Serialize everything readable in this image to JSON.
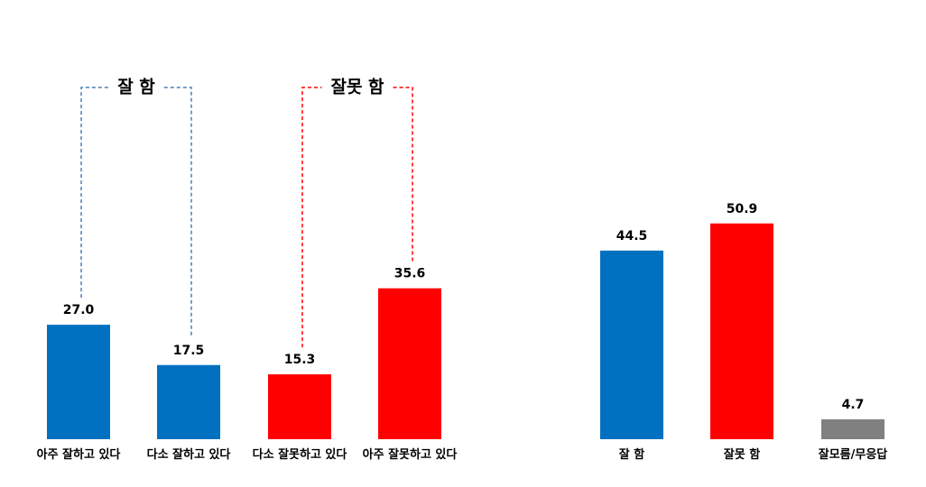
{
  "chart_data": [
    {
      "type": "bar",
      "categories": [
        "아주 잘하고 있다",
        "다소 잘하고 있다",
        "다소 잘못하고 있다",
        "아주 잘못하고 있다"
      ],
      "values": [
        27.0,
        17.5,
        15.3,
        35.6
      ],
      "value_labels": [
        "27.0",
        "17.5",
        "15.3",
        "35.6"
      ],
      "colors": [
        "#0070c0",
        "#0070c0",
        "#ff0000",
        "#ff0000"
      ],
      "annotations": [
        {
          "text": "잘 함",
          "color": "#4a7ebb"
        },
        {
          "text": "잘못 함",
          "color": "#ff0000"
        }
      ]
    },
    {
      "type": "bar",
      "categories": [
        "잘 함",
        "잘못 함",
        "잘모름/무응답"
      ],
      "values": [
        44.5,
        50.9,
        4.7
      ],
      "value_labels": [
        "44.5",
        "50.9",
        "4.7"
      ],
      "colors": [
        "#0070c0",
        "#ff0000",
        "#808080"
      ]
    }
  ]
}
